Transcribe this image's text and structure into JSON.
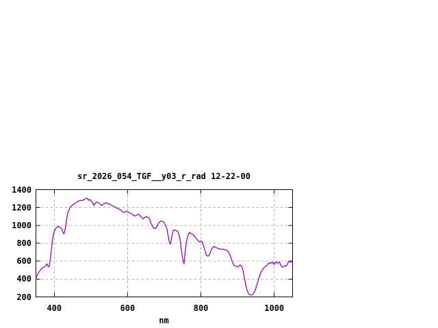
{
  "chart_data": {
    "type": "line",
    "title": "sr_2026_054_TGF__y03_r_rad 12-22-00",
    "xlabel": "nm",
    "ylabel": "",
    "xlim": [
      350,
      1050
    ],
    "ylim": [
      200,
      1400
    ],
    "xticks": [
      400,
      600,
      800,
      1000
    ],
    "yticks": [
      200,
      400,
      600,
      800,
      1000,
      1200,
      1400
    ],
    "grid": true,
    "legend": "none",
    "colors": {
      "line": "#9400d3",
      "grid": "#b4b4b4",
      "border": "#000000",
      "background": "#ffffff"
    },
    "series": [
      {
        "points": [
          [
            350,
            415
          ],
          [
            353,
            435
          ],
          [
            356,
            460
          ],
          [
            359,
            482
          ],
          [
            362,
            500
          ],
          [
            365,
            515
          ],
          [
            368,
            525
          ],
          [
            371,
            532
          ],
          [
            374,
            538
          ],
          [
            377,
            550
          ],
          [
            380,
            570
          ],
          [
            382,
            552
          ],
          [
            384,
            538
          ],
          [
            386,
            542
          ],
          [
            388,
            585
          ],
          [
            390,
            650
          ],
          [
            392,
            720
          ],
          [
            394,
            800
          ],
          [
            396,
            860
          ],
          [
            398,
            900
          ],
          [
            400,
            935
          ],
          [
            402,
            950
          ],
          [
            405,
            971
          ],
          [
            408,
            981
          ],
          [
            411,
            990
          ],
          [
            414,
            983
          ],
          [
            417,
            975
          ],
          [
            420,
            965
          ],
          [
            422,
            945
          ],
          [
            424,
            920
          ],
          [
            426,
            905
          ],
          [
            428,
            925
          ],
          [
            430,
            963
          ],
          [
            432,
            1026
          ],
          [
            434,
            1075
          ],
          [
            436,
            1128
          ],
          [
            439,
            1166
          ],
          [
            442,
            1192
          ],
          [
            445,
            1209
          ],
          [
            448,
            1222
          ],
          [
            452,
            1235
          ],
          [
            455,
            1242
          ],
          [
            458,
            1250
          ],
          [
            461,
            1260
          ],
          [
            464,
            1268
          ],
          [
            467,
            1273
          ],
          [
            470,
            1276
          ],
          [
            473,
            1281
          ],
          [
            476,
            1278
          ],
          [
            479,
            1284
          ],
          [
            482,
            1291
          ],
          [
            485,
            1298
          ],
          [
            488,
            1305
          ],
          [
            490,
            1300
          ],
          [
            492,
            1293
          ],
          [
            494,
            1281
          ],
          [
            496,
            1290
          ],
          [
            499,
            1282
          ],
          [
            501,
            1269
          ],
          [
            504,
            1254
          ],
          [
            506,
            1240
          ],
          [
            508,
            1223
          ],
          [
            510,
            1238
          ],
          [
            512,
            1250
          ],
          [
            515,
            1258
          ],
          [
            517,
            1262
          ],
          [
            520,
            1256
          ],
          [
            523,
            1244
          ],
          [
            526,
            1234
          ],
          [
            529,
            1224
          ],
          [
            531,
            1226
          ],
          [
            534,
            1238
          ],
          [
            537,
            1246
          ],
          [
            539,
            1249
          ],
          [
            542,
            1254
          ],
          [
            545,
            1244
          ],
          [
            548,
            1239
          ],
          [
            551,
            1239
          ],
          [
            554,
            1231
          ],
          [
            557,
            1223
          ],
          [
            560,
            1218
          ],
          [
            563,
            1213
          ],
          [
            566,
            1205
          ],
          [
            569,
            1198
          ],
          [
            572,
            1192
          ],
          [
            575,
            1187
          ],
          [
            578,
            1180
          ],
          [
            581,
            1172
          ],
          [
            584,
            1162
          ],
          [
            587,
            1150
          ],
          [
            589,
            1143
          ],
          [
            592,
            1147
          ],
          [
            594,
            1153
          ],
          [
            597,
            1158
          ],
          [
            600,
            1153
          ],
          [
            603,
            1148
          ],
          [
            606,
            1138
          ],
          [
            609,
            1135
          ],
          [
            612,
            1127
          ],
          [
            615,
            1115
          ],
          [
            618,
            1108
          ],
          [
            620,
            1104
          ],
          [
            623,
            1112
          ],
          [
            626,
            1117
          ],
          [
            629,
            1125
          ],
          [
            632,
            1117
          ],
          [
            636,
            1100
          ],
          [
            639,
            1084
          ],
          [
            642,
            1074
          ],
          [
            645,
            1084
          ],
          [
            648,
            1092
          ],
          [
            651,
            1100
          ],
          [
            654,
            1092
          ],
          [
            657,
            1084
          ],
          [
            660,
            1074
          ],
          [
            663,
            1033
          ],
          [
            667,
            997
          ],
          [
            670,
            977
          ],
          [
            673,
            964
          ],
          [
            676,
            969
          ],
          [
            679,
            982
          ],
          [
            682,
            1008
          ],
          [
            685,
            1028
          ],
          [
            688,
            1041
          ],
          [
            691,
            1048
          ],
          [
            694,
            1048
          ],
          [
            697,
            1041
          ],
          [
            700,
            1028
          ],
          [
            703,
            1002
          ],
          [
            707,
            964
          ],
          [
            710,
            900
          ],
          [
            713,
            824
          ],
          [
            716,
            790
          ],
          [
            718,
            810
          ],
          [
            720,
            860
          ],
          [
            722,
            905
          ],
          [
            725,
            950
          ],
          [
            728,
            947
          ],
          [
            731,
            947
          ],
          [
            734,
            939
          ],
          [
            737,
            931
          ],
          [
            740,
            901
          ],
          [
            743,
            850
          ],
          [
            746,
            748
          ],
          [
            749,
            658
          ],
          [
            752,
            595
          ],
          [
            754,
            569
          ],
          [
            756,
            650
          ],
          [
            758,
            735
          ],
          [
            760,
            800
          ],
          [
            762,
            845
          ],
          [
            765,
            888
          ],
          [
            768,
            921
          ],
          [
            771,
            915
          ],
          [
            774,
            908
          ],
          [
            777,
            900
          ],
          [
            780,
            890
          ],
          [
            783,
            875
          ],
          [
            786,
            862
          ],
          [
            789,
            845
          ],
          [
            792,
            830
          ],
          [
            794,
            820
          ],
          [
            796,
            817
          ],
          [
            798,
            822
          ],
          [
            800,
            825
          ],
          [
            803,
            817
          ],
          [
            806,
            787
          ],
          [
            808,
            761
          ],
          [
            810,
            735
          ],
          [
            812,
            707
          ],
          [
            814,
            680
          ],
          [
            816,
            661
          ],
          [
            819,
            658
          ],
          [
            822,
            661
          ],
          [
            824,
            681
          ],
          [
            827,
            710
          ],
          [
            830,
            740
          ],
          [
            833,
            755
          ],
          [
            836,
            765
          ],
          [
            839,
            757
          ],
          [
            842,
            750
          ],
          [
            845,
            745
          ],
          [
            848,
            741
          ],
          [
            851,
            738
          ],
          [
            855,
            734
          ],
          [
            858,
            733
          ],
          [
            861,
            733
          ],
          [
            864,
            730
          ],
          [
            867,
            726
          ],
          [
            870,
            722
          ],
          [
            873,
            712
          ],
          [
            876,
            697
          ],
          [
            879,
            670
          ],
          [
            882,
            640
          ],
          [
            884,
            610
          ],
          [
            887,
            580
          ],
          [
            890,
            557
          ],
          [
            892,
            549
          ],
          [
            895,
            546
          ],
          [
            898,
            540
          ],
          [
            900,
            536
          ],
          [
            903,
            541
          ],
          [
            906,
            557
          ],
          [
            909,
            551
          ],
          [
            912,
            536
          ],
          [
            915,
            493
          ],
          [
            918,
            429
          ],
          [
            921,
            366
          ],
          [
            924,
            302
          ],
          [
            927,
            263
          ],
          [
            930,
            238
          ],
          [
            933,
            225
          ],
          [
            936,
            220
          ],
          [
            939,
            222
          ],
          [
            942,
            230
          ],
          [
            945,
            251
          ],
          [
            948,
            276
          ],
          [
            951,
            314
          ],
          [
            954,
            352
          ],
          [
            957,
            398
          ],
          [
            960,
            434
          ],
          [
            963,
            467
          ],
          [
            966,
            493
          ],
          [
            969,
            511
          ],
          [
            972,
            526
          ],
          [
            975,
            536
          ],
          [
            978,
            545
          ],
          [
            981,
            560
          ],
          [
            984,
            572
          ],
          [
            986,
            580
          ],
          [
            988,
            575
          ],
          [
            990,
            585
          ],
          [
            992,
            578
          ],
          [
            994,
            583
          ],
          [
            996,
            589
          ],
          [
            998,
            570
          ],
          [
            1000,
            564
          ],
          [
            1002,
            580
          ],
          [
            1005,
            592
          ],
          [
            1008,
            576
          ],
          [
            1011,
            584
          ],
          [
            1014,
            593
          ],
          [
            1017,
            564
          ],
          [
            1020,
            540
          ],
          [
            1023,
            533
          ],
          [
            1026,
            538
          ],
          [
            1029,
            551
          ],
          [
            1032,
            543
          ],
          [
            1035,
            560
          ],
          [
            1038,
            585
          ],
          [
            1041,
            600
          ],
          [
            1044,
            592
          ],
          [
            1047,
            588
          ],
          [
            1050,
            598
          ]
        ]
      }
    ]
  }
}
